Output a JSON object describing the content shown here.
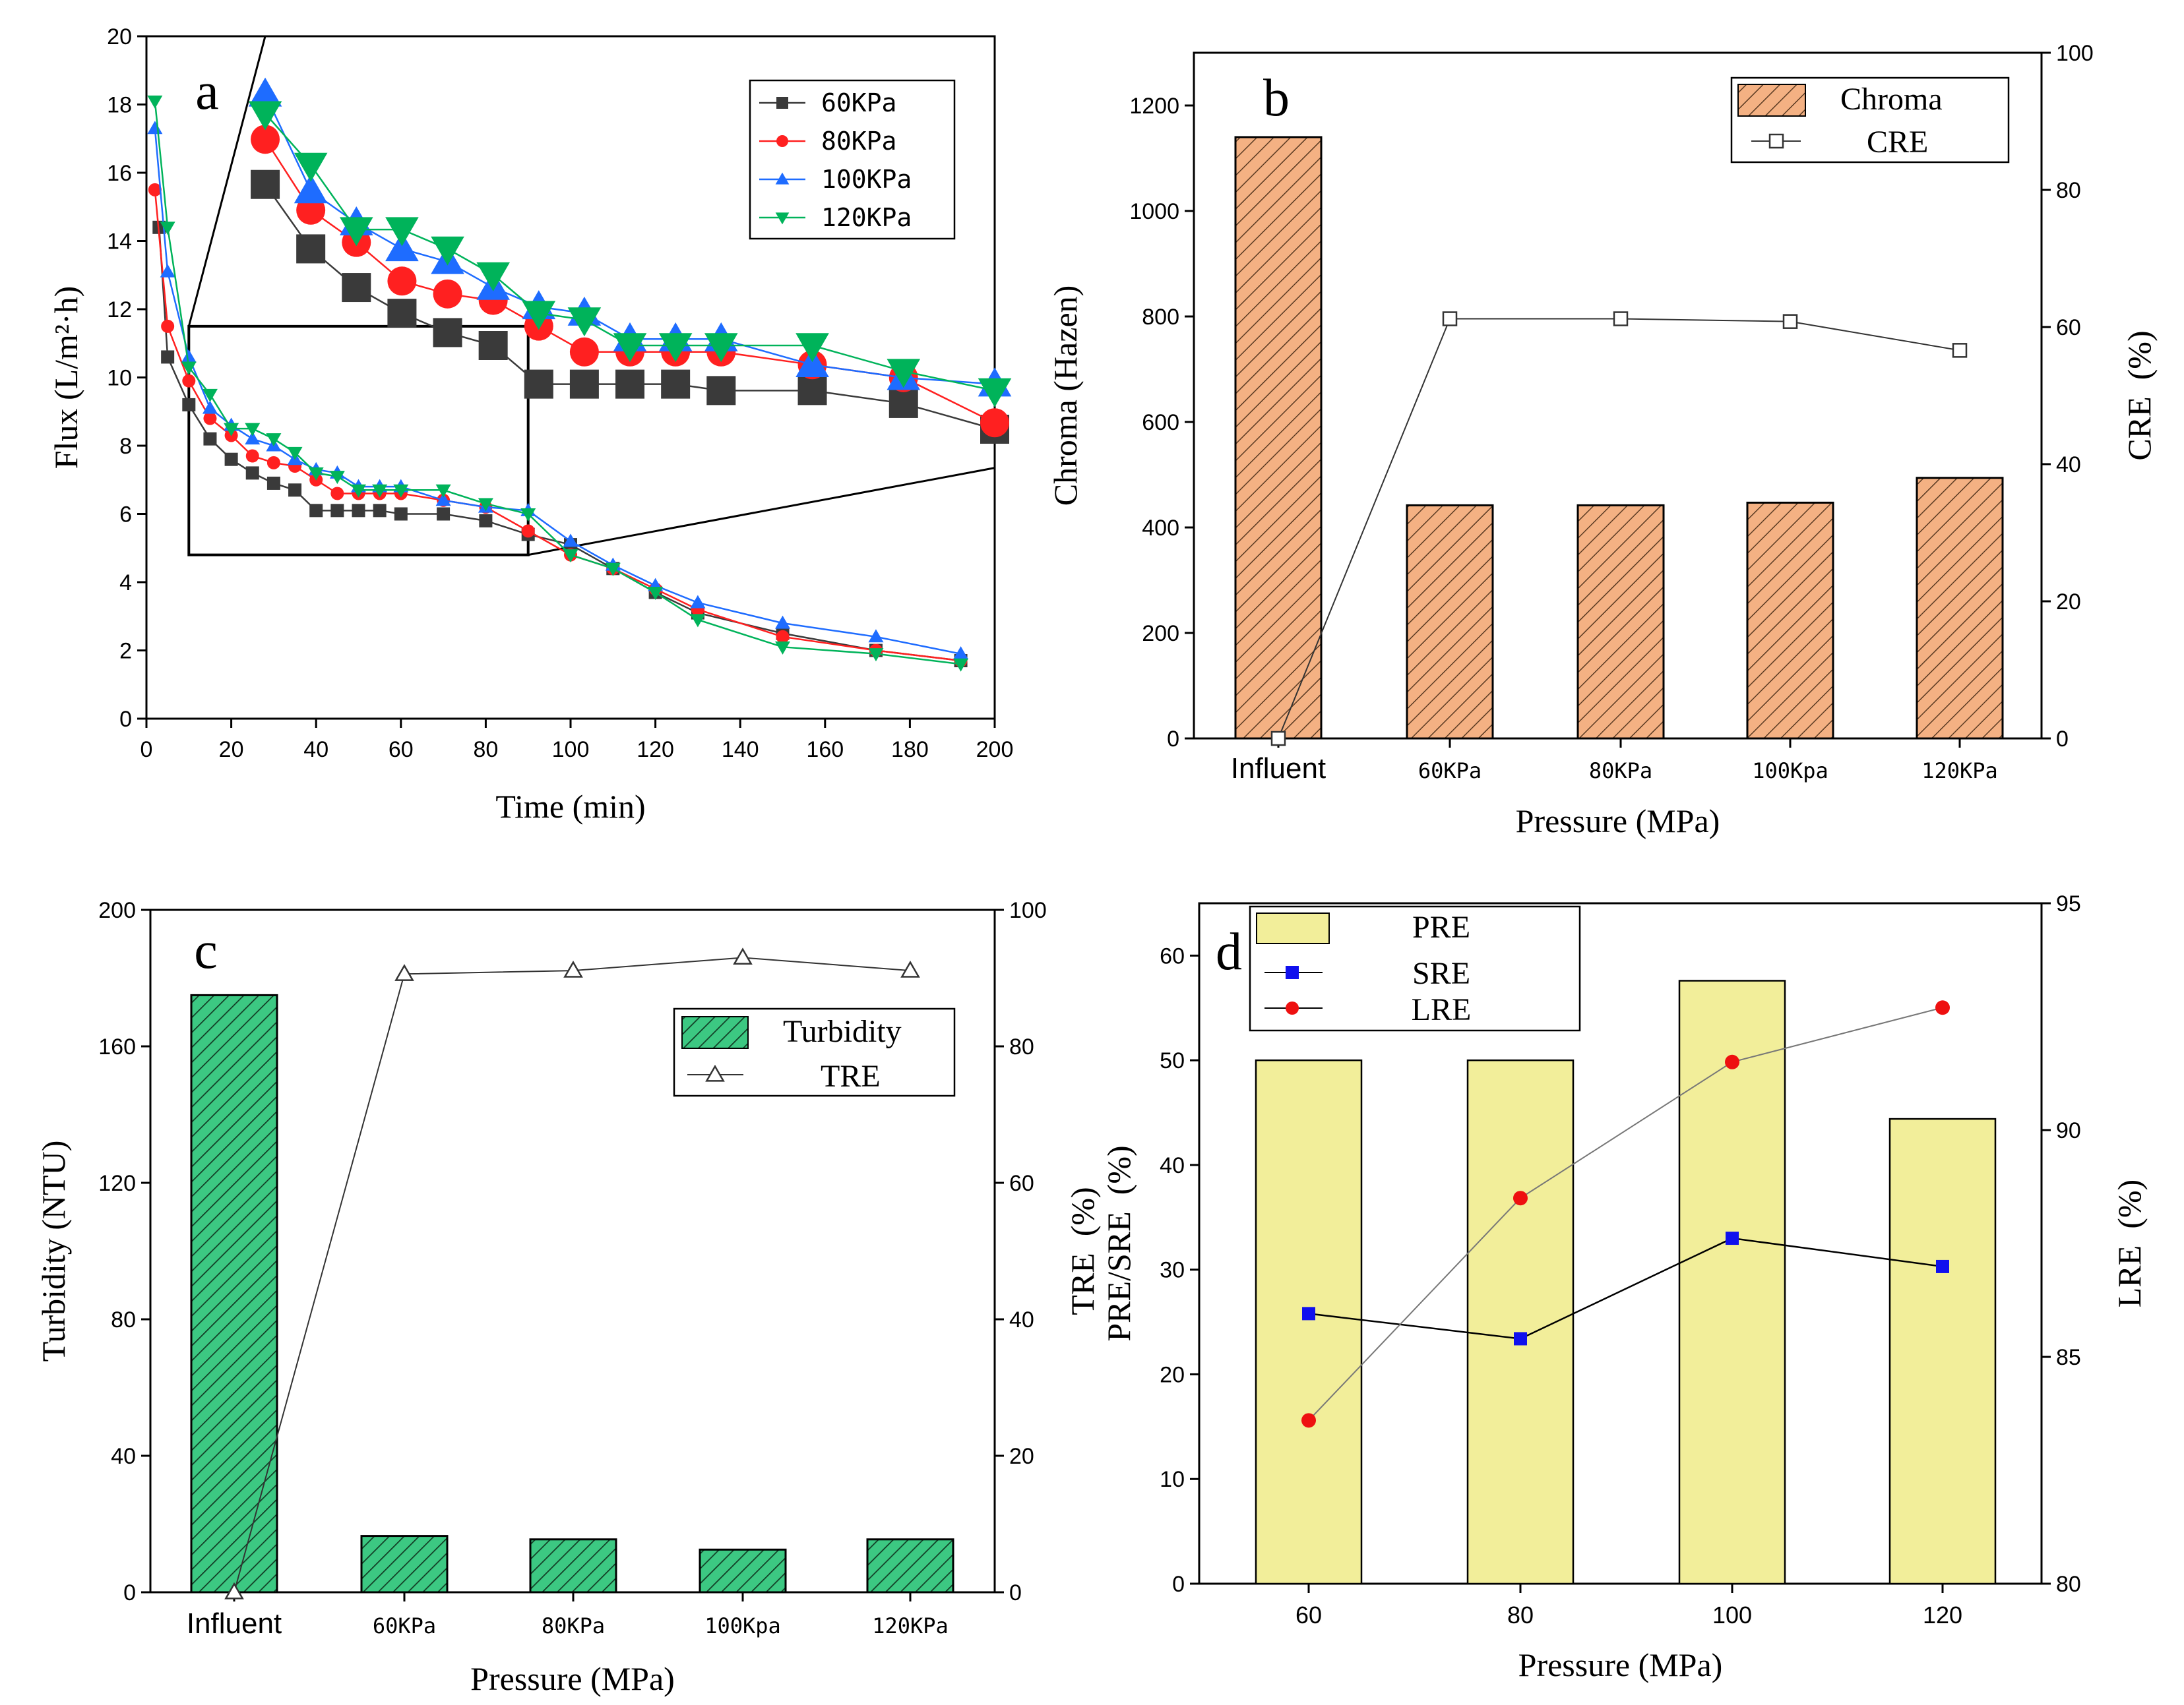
{
  "chart_data": [
    {
      "panel": "a",
      "type": "line",
      "xlabel": "Time (min)",
      "ylabel": "Flux (L/m²·h)",
      "xlim": [
        0,
        200
      ],
      "ylim": [
        0,
        20
      ],
      "xticks": [
        0,
        20,
        40,
        60,
        80,
        100,
        120,
        140,
        160,
        180,
        200
      ],
      "yticks": [
        0,
        2,
        4,
        6,
        8,
        10,
        12,
        14,
        16,
        18,
        20
      ],
      "legend_position": "top-right",
      "zoom_window": {
        "x": [
          10,
          90
        ],
        "y": [
          4.8,
          11.5
        ]
      },
      "inset_xlim": [
        10,
        90
      ],
      "inset_ylim": [
        4.8,
        11.5
      ],
      "series": [
        {
          "name": "60KPa",
          "color": "#3a3a3a",
          "marker": "square",
          "x": [
            3,
            5,
            10,
            15,
            20,
            25,
            30,
            35,
            40,
            45,
            50,
            55,
            60,
            70,
            80,
            90,
            100,
            110,
            120,
            130,
            150,
            172,
            192
          ],
          "y": [
            14.4,
            10.6,
            9.2,
            8.2,
            7.6,
            7.2,
            6.9,
            6.7,
            6.1,
            6.1,
            6.1,
            6.1,
            6.0,
            6.0,
            5.8,
            5.4,
            5.1,
            4.4,
            3.7,
            3.1,
            2.5,
            2.0,
            1.7
          ]
        },
        {
          "name": "80KPa",
          "color": "#ff2020",
          "marker": "circle",
          "x": [
            2,
            5,
            10,
            15,
            20,
            25,
            30,
            35,
            40,
            45,
            50,
            55,
            60,
            70,
            80,
            90,
            100,
            110,
            120,
            130,
            150,
            172,
            192
          ],
          "y": [
            15.5,
            11.5,
            9.9,
            8.8,
            8.3,
            7.7,
            7.5,
            7.4,
            7.0,
            6.6,
            6.6,
            6.6,
            6.6,
            6.4,
            6.2,
            5.5,
            4.8,
            4.4,
            3.8,
            3.2,
            2.4,
            2.0,
            1.7
          ]
        },
        {
          "name": "100KPa",
          "color": "#1e6cff",
          "marker": "triangle",
          "x": [
            2,
            5,
            10,
            15,
            20,
            25,
            30,
            35,
            40,
            45,
            50,
            55,
            60,
            70,
            80,
            90,
            100,
            110,
            120,
            130,
            150,
            172,
            192
          ],
          "y": [
            17.3,
            13.1,
            10.6,
            9.1,
            8.6,
            8.2,
            8.0,
            7.6,
            7.3,
            7.2,
            6.8,
            6.8,
            6.8,
            6.4,
            6.2,
            6.1,
            5.2,
            4.5,
            3.9,
            3.4,
            2.8,
            2.4,
            1.9
          ]
        },
        {
          "name": "120KPa",
          "color": "#00b35a",
          "marker": "triangle-down",
          "x": [
            2,
            5,
            10,
            15,
            20,
            25,
            30,
            35,
            40,
            45,
            50,
            55,
            60,
            70,
            80,
            90,
            100,
            110,
            120,
            130,
            150,
            172,
            192
          ],
          "y": [
            18.1,
            14.4,
            10.3,
            9.5,
            8.5,
            8.5,
            8.2,
            7.8,
            7.2,
            7.1,
            6.7,
            6.7,
            6.7,
            6.7,
            6.3,
            6.0,
            4.8,
            4.4,
            3.7,
            2.9,
            2.1,
            1.9,
            1.6
          ]
        }
      ]
    },
    {
      "panel": "b",
      "type": "bar",
      "categories": [
        "Influent",
        "60KPa",
        "80KPa",
        "100Kpa",
        "120KPa"
      ],
      "xlabel": "Pressure (MPa)",
      "ylabel": "Chroma (Hazen)",
      "y2label": "CRE  (%)",
      "ylim": [
        0,
        1300
      ],
      "yticks": [
        0,
        200,
        400,
        600,
        800,
        1000,
        1200
      ],
      "y2lim": [
        0,
        100
      ],
      "y2ticks": [
        0,
        20,
        40,
        60,
        80,
        100
      ],
      "legend_position": "top-right",
      "series": [
        {
          "name": "Chroma",
          "axis": "left",
          "kind": "bar",
          "color": "#f4b183",
          "hatch": "#5a3a22",
          "values": [
            1140,
            442,
            442,
            447,
            494
          ]
        },
        {
          "name": "CRE",
          "axis": "right",
          "kind": "line",
          "color": "#333333",
          "marker": "square-open",
          "values": [
            0,
            61.2,
            61.2,
            60.8,
            56.6
          ]
        }
      ]
    },
    {
      "panel": "c",
      "type": "bar",
      "categories": [
        "Influent",
        "60KPa",
        "80KPa",
        "100Kpa",
        "120KPa"
      ],
      "xlabel": "Pressure (MPa)",
      "ylabel": "Turbidity (NTU)",
      "y2label": "TRE  (%)",
      "ylim": [
        0,
        200
      ],
      "yticks": [
        0,
        40,
        80,
        120,
        160,
        200
      ],
      "y2lim": [
        0,
        100
      ],
      "y2ticks": [
        0,
        20,
        40,
        60,
        80,
        100
      ],
      "legend_position": "center-right",
      "series": [
        {
          "name": "Turbidity",
          "axis": "left",
          "kind": "bar",
          "color": "#3cc882",
          "hatch": "#123d25",
          "values": [
            175,
            16.5,
            15.5,
            12.5,
            15.5
          ]
        },
        {
          "name": "TRE",
          "axis": "right",
          "kind": "line",
          "color": "#333333",
          "marker": "triangle-open",
          "values": [
            0,
            90.6,
            91.1,
            93.0,
            91.1
          ]
        }
      ]
    },
    {
      "panel": "d",
      "type": "bar",
      "categories": [
        "60",
        "80",
        "100",
        "120"
      ],
      "xlabel": "Pressure (MPa)",
      "ylabel": "PRE/SRE  (%)",
      "y2label": "LRE  (%)",
      "ylim": [
        0,
        65
      ],
      "yticks": [
        0,
        10,
        20,
        30,
        40,
        50,
        60
      ],
      "y2lim": [
        80,
        95
      ],
      "y2ticks": [
        80,
        85,
        90,
        95
      ],
      "legend_position": "top-left",
      "series": [
        {
          "name": "PRE",
          "axis": "left",
          "kind": "bar",
          "color": "#f2ee9a",
          "values": [
            50,
            50,
            57.6,
            44.4
          ]
        },
        {
          "name": "SRE",
          "axis": "left",
          "kind": "line",
          "color": "#1010ee",
          "marker": "square",
          "values": [
            25.8,
            23.4,
            33.0,
            30.3
          ]
        },
        {
          "name": "LRE",
          "axis": "right",
          "kind": "line",
          "color": "#ee1010",
          "marker": "circle",
          "values": [
            83.6,
            88.5,
            91.5,
            92.7
          ]
        }
      ]
    }
  ]
}
